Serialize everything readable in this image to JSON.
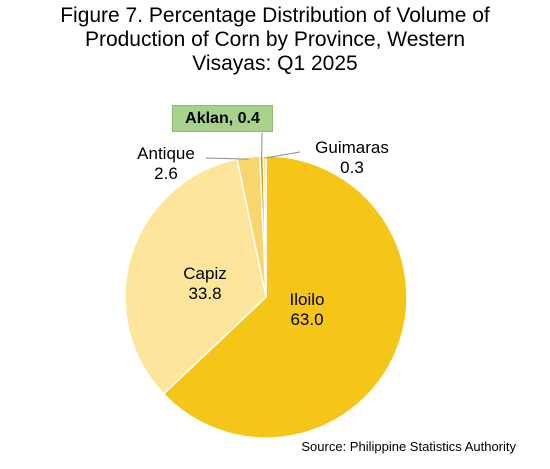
{
  "title_lines": [
    "Figure 7. Percentage Distribution of Volume of",
    "Production of Corn by Province, Western",
    "Visayas: Q1 2025"
  ],
  "source": "Source: Philippine Statistics Authority",
  "chart_data": {
    "type": "pie",
    "title": "Figure 7. Percentage Distribution of Volume of Production of Corn by Province, Western Visayas: Q1 2025",
    "slices": [
      {
        "name": "Iloilo",
        "value": 63.0,
        "value_label": "63.0",
        "color": "#f5c518"
      },
      {
        "name": "Capiz",
        "value": 33.8,
        "value_label": "33.8",
        "color": "#fde59b"
      },
      {
        "name": "Antique",
        "value": 2.6,
        "value_label": "2.6",
        "color": "#f9d56e"
      },
      {
        "name": "Aklan",
        "value": 0.4,
        "value_label": "0.4",
        "color": "#d4a017"
      },
      {
        "name": "Guimaras",
        "value": 0.3,
        "value_label": "0.3",
        "color": "#f7dc85"
      }
    ],
    "highlighted_label": "Aklan, 0.4",
    "start_angle": "12 o'clock",
    "direction": "clockwise"
  }
}
